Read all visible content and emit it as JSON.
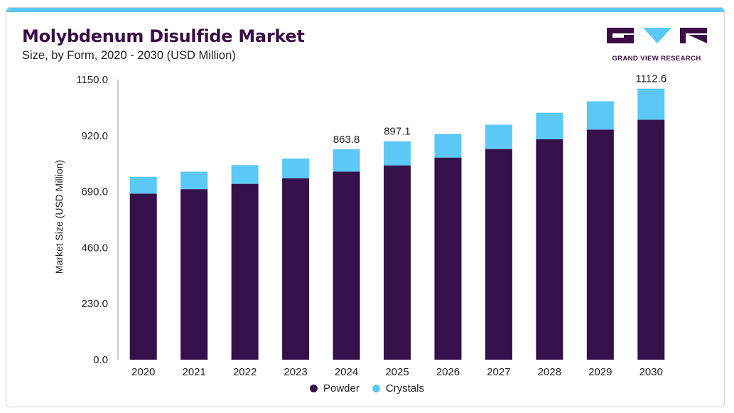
{
  "header": {
    "title": "Molybdenum Disulfide Market",
    "subtitle": "Size, by Form, 2020 - 2030 (USD Million)"
  },
  "logo": {
    "text": "GRAND VIEW RESEARCH",
    "icon": "gvr-logo-icon"
  },
  "colors": {
    "accent_bar": "#5bc8f5",
    "powder": "#36104a",
    "crystals": "#5bc8f5",
    "title": "#3a0d45"
  },
  "chart_data": {
    "type": "bar",
    "stacked": true,
    "categories": [
      "2020",
      "2021",
      "2022",
      "2023",
      "2024",
      "2025",
      "2026",
      "2027",
      "2028",
      "2029",
      "2030"
    ],
    "series": [
      {
        "name": "Powder",
        "color": "#36104a",
        "values": [
          682,
          700,
          722,
          745,
          772,
          798,
          830,
          865,
          905,
          945,
          985
        ]
      },
      {
        "name": "Crystals",
        "color": "#5bc8f5",
        "values": [
          69,
          72,
          77,
          81,
          92,
          99,
          97,
          100,
          109,
          116,
          128
        ]
      }
    ],
    "data_labels": {
      "4": "863.8",
      "5": "897.1",
      "10": "1112.6"
    },
    "ylabel": "Market Size (USD Million)",
    "xlabel": "",
    "ylim": [
      0,
      1150
    ],
    "yticks": [
      "0.0",
      "230.0",
      "460.0",
      "690.0",
      "920.0",
      "1150.0"
    ],
    "grid": false,
    "legend_position": "bottom-center"
  }
}
